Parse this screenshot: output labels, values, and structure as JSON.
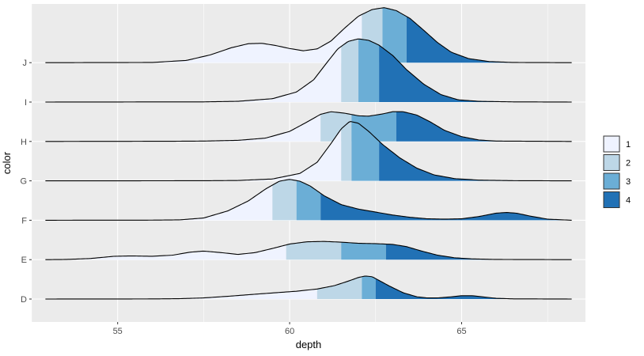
{
  "chart_data": {
    "type": "ridgeline",
    "xlabel": "depth",
    "ylabel": "color",
    "xlim": [
      52.5,
      68.6
    ],
    "x_ticks": [
      55,
      60,
      65
    ],
    "x_tick_labels": [
      "55",
      "60",
      "65"
    ],
    "categories": [
      "D",
      "E",
      "F",
      "G",
      "H",
      "I",
      "J"
    ],
    "grid": true,
    "legend": {
      "position": "right",
      "entries": [
        "1",
        "2",
        "3",
        "4"
      ]
    },
    "quartile_colors": [
      "#eff3ff",
      "#bdd7e7",
      "#6baed6",
      "#2171b5"
    ],
    "series": [
      {
        "category": "D",
        "quartiles": [
          60.8,
          62.1,
          62.5
        ],
        "density": [
          [
            52.9,
            0
          ],
          [
            56.0,
            0.003
          ],
          [
            56.8,
            0.01
          ],
          [
            57.5,
            0.03
          ],
          [
            58.3,
            0.08
          ],
          [
            59.0,
            0.13
          ],
          [
            59.6,
            0.17
          ],
          [
            60.2,
            0.21
          ],
          [
            60.8,
            0.27
          ],
          [
            61.3,
            0.36
          ],
          [
            61.7,
            0.48
          ],
          [
            62.0,
            0.58
          ],
          [
            62.2,
            0.62
          ],
          [
            62.4,
            0.6
          ],
          [
            62.6,
            0.5
          ],
          [
            62.9,
            0.35
          ],
          [
            63.3,
            0.17
          ],
          [
            63.7,
            0.06
          ],
          [
            64.0,
            0.03
          ],
          [
            64.3,
            0.03
          ],
          [
            64.7,
            0.06
          ],
          [
            65.0,
            0.09
          ],
          [
            65.3,
            0.09
          ],
          [
            65.6,
            0.06
          ],
          [
            66.0,
            0.02
          ],
          [
            66.5,
            0.005
          ],
          [
            68.2,
            0
          ]
        ]
      },
      {
        "category": "E",
        "quartiles": [
          59.9,
          61.5,
          62.8
        ],
        "density": [
          [
            52.9,
            0
          ],
          [
            53.5,
            0.005
          ],
          [
            54.2,
            0.03
          ],
          [
            54.9,
            0.09
          ],
          [
            55.4,
            0.1
          ],
          [
            56.0,
            0.09
          ],
          [
            56.6,
            0.12
          ],
          [
            57.1,
            0.2
          ],
          [
            57.5,
            0.23
          ],
          [
            58.0,
            0.19
          ],
          [
            58.5,
            0.14
          ],
          [
            59.0,
            0.19
          ],
          [
            59.5,
            0.3
          ],
          [
            60.0,
            0.42
          ],
          [
            60.5,
            0.48
          ],
          [
            61.0,
            0.49
          ],
          [
            61.5,
            0.47
          ],
          [
            62.0,
            0.44
          ],
          [
            62.5,
            0.43
          ],
          [
            63.0,
            0.41
          ],
          [
            63.4,
            0.35
          ],
          [
            63.8,
            0.24
          ],
          [
            64.3,
            0.12
          ],
          [
            64.8,
            0.05
          ],
          [
            65.3,
            0.02
          ],
          [
            66.0,
            0.005
          ],
          [
            68.2,
            0
          ]
        ]
      },
      {
        "category": "F",
        "quartiles": [
          59.5,
          60.2,
          60.9
        ],
        "density": [
          [
            52.9,
            0
          ],
          [
            56.0,
            0.003
          ],
          [
            56.8,
            0.01
          ],
          [
            57.5,
            0.06
          ],
          [
            58.2,
            0.25
          ],
          [
            58.8,
            0.52
          ],
          [
            59.3,
            0.84
          ],
          [
            59.7,
            1.05
          ],
          [
            60.0,
            1.1
          ],
          [
            60.3,
            1.05
          ],
          [
            60.6,
            0.92
          ],
          [
            61.0,
            0.66
          ],
          [
            61.5,
            0.42
          ],
          [
            62.0,
            0.3
          ],
          [
            62.5,
            0.22
          ],
          [
            63.0,
            0.14
          ],
          [
            63.5,
            0.08
          ],
          [
            64.0,
            0.04
          ],
          [
            64.5,
            0.03
          ],
          [
            65.0,
            0.04
          ],
          [
            65.5,
            0.1
          ],
          [
            66.0,
            0.19
          ],
          [
            66.3,
            0.21
          ],
          [
            66.6,
            0.19
          ],
          [
            67.0,
            0.11
          ],
          [
            67.5,
            0.03
          ],
          [
            68.2,
            0
          ]
        ]
      },
      {
        "category": "G",
        "quartiles": [
          61.5,
          61.8,
          62.6
        ],
        "density": [
          [
            52.9,
            0
          ],
          [
            57.5,
            0.003
          ],
          [
            58.5,
            0.01
          ],
          [
            59.5,
            0.05
          ],
          [
            60.3,
            0.2
          ],
          [
            60.8,
            0.5
          ],
          [
            61.2,
            1.0
          ],
          [
            61.5,
            1.4
          ],
          [
            61.75,
            1.6
          ],
          [
            62.0,
            1.55
          ],
          [
            62.3,
            1.33
          ],
          [
            62.7,
            0.98
          ],
          [
            63.2,
            0.62
          ],
          [
            63.7,
            0.34
          ],
          [
            64.2,
            0.16
          ],
          [
            64.8,
            0.06
          ],
          [
            65.5,
            0.02
          ],
          [
            66.5,
            0.005
          ],
          [
            68.2,
            0
          ]
        ]
      },
      {
        "category": "H",
        "quartiles": [
          60.9,
          61.8,
          63.1
        ],
        "density": [
          [
            52.9,
            0
          ],
          [
            56.5,
            0.005
          ],
          [
            57.5,
            0.01
          ],
          [
            58.5,
            0.03
          ],
          [
            59.3,
            0.09
          ],
          [
            60.0,
            0.27
          ],
          [
            60.5,
            0.52
          ],
          [
            60.9,
            0.73
          ],
          [
            61.2,
            0.8
          ],
          [
            61.6,
            0.76
          ],
          [
            62.0,
            0.69
          ],
          [
            62.3,
            0.68
          ],
          [
            62.7,
            0.74
          ],
          [
            63.0,
            0.8
          ],
          [
            63.3,
            0.8
          ],
          [
            63.7,
            0.71
          ],
          [
            64.1,
            0.52
          ],
          [
            64.5,
            0.3
          ],
          [
            65.0,
            0.13
          ],
          [
            65.5,
            0.04
          ],
          [
            66.0,
            0.01
          ],
          [
            68.2,
            0
          ]
        ]
      },
      {
        "category": "I",
        "quartiles": [
          61.5,
          62.0,
          62.6
        ],
        "density": [
          [
            52.9,
            0
          ],
          [
            57.5,
            0.005
          ],
          [
            58.5,
            0.02
          ],
          [
            59.5,
            0.09
          ],
          [
            60.2,
            0.27
          ],
          [
            60.7,
            0.6
          ],
          [
            61.1,
            1.08
          ],
          [
            61.4,
            1.43
          ],
          [
            61.7,
            1.63
          ],
          [
            62.0,
            1.7
          ],
          [
            62.3,
            1.66
          ],
          [
            62.6,
            1.53
          ],
          [
            63.0,
            1.25
          ],
          [
            63.4,
            0.87
          ],
          [
            63.9,
            0.48
          ],
          [
            64.4,
            0.2
          ],
          [
            64.9,
            0.06
          ],
          [
            65.5,
            0.02
          ],
          [
            66.5,
            0.005
          ],
          [
            68.2,
            0
          ]
        ]
      },
      {
        "category": "J",
        "quartiles": [
          62.1,
          62.7,
          63.4
        ],
        "density": [
          [
            52.9,
            0
          ],
          [
            56.0,
            0.005
          ],
          [
            57.0,
            0.06
          ],
          [
            57.7,
            0.21
          ],
          [
            58.3,
            0.4
          ],
          [
            58.8,
            0.51
          ],
          [
            59.2,
            0.52
          ],
          [
            59.6,
            0.46
          ],
          [
            60.0,
            0.38
          ],
          [
            60.4,
            0.32
          ],
          [
            60.8,
            0.37
          ],
          [
            61.2,
            0.58
          ],
          [
            61.6,
            0.93
          ],
          [
            62.0,
            1.25
          ],
          [
            62.4,
            1.43
          ],
          [
            62.75,
            1.48
          ],
          [
            63.1,
            1.4
          ],
          [
            63.5,
            1.19
          ],
          [
            63.9,
            0.87
          ],
          [
            64.3,
            0.54
          ],
          [
            64.7,
            0.28
          ],
          [
            65.2,
            0.11
          ],
          [
            65.8,
            0.03
          ],
          [
            66.5,
            0.005
          ],
          [
            68.2,
            0
          ]
        ]
      }
    ]
  }
}
